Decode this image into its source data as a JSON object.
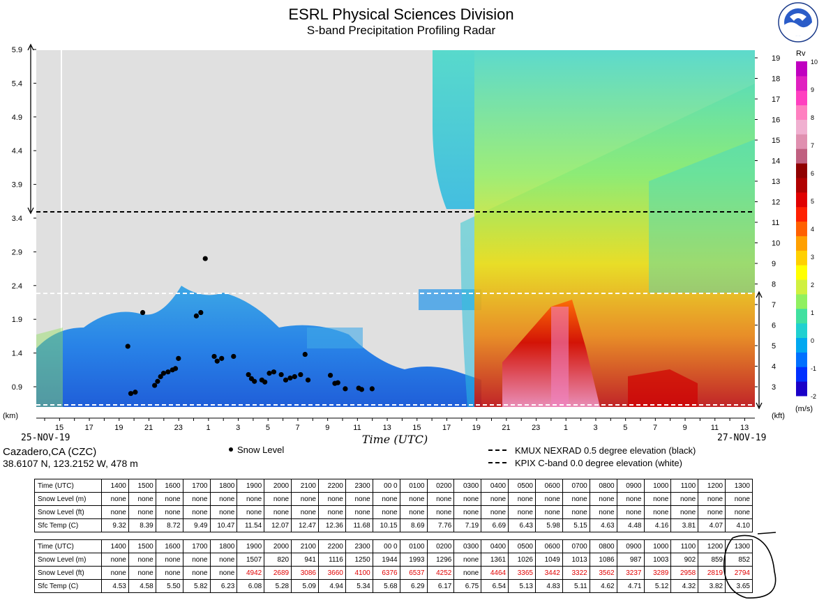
{
  "header": {
    "title": "ESRL Physical Sciences Division",
    "subtitle": "S-band Precipitation Profiling Radar"
  },
  "site": {
    "name": "Cazadero,CA (CZC)",
    "location": "38.6107 N, 123.2152 W, 478 m"
  },
  "legend": {
    "snow_level": "Snow Level",
    "kmux": "KMUX NEXRAD 0.5 degree elevation (black)",
    "kpix": "KPIX C-band 0.0 degree elevation (white)"
  },
  "colors": {
    "plot_background": "#e0e0e0",
    "red_value": "#e00000",
    "kmux_line": "#000000",
    "kpix_line": "#ffffff"
  },
  "chart_data": {
    "type": "heatmap",
    "variable": "Rv",
    "units": "(m/s)",
    "xlabel": "Time (UTC)",
    "left_axis_label": "(km)",
    "right_axis_label": "(kft)",
    "start_date": "25-NOV-19",
    "end_date": "27-NOV-19",
    "xticks": [
      "15",
      "17",
      "19",
      "21",
      "23",
      "1",
      "3",
      "5",
      "7",
      "9",
      "11",
      "13",
      "15",
      "17",
      "19",
      "21",
      "23",
      "1",
      "3",
      "5",
      "7",
      "9",
      "11",
      "13"
    ],
    "yticks_km": [
      "0.9",
      "1.4",
      "1.9",
      "2.4",
      "2.9",
      "3.4",
      "3.9",
      "4.4",
      "4.9",
      "5.4",
      "5.9"
    ],
    "yticks_kft": [
      "3",
      "4",
      "5",
      "6",
      "7",
      "8",
      "9",
      "10",
      "11",
      "12",
      "13",
      "14",
      "15",
      "16",
      "17",
      "18",
      "19"
    ],
    "colorbar_ticks": [
      "-2",
      "-1",
      "0",
      "1",
      "2",
      "3",
      "4",
      "5",
      "6",
      "7",
      "8",
      "9",
      "10"
    ],
    "colorbar_colors": [
      "#1a00c8",
      "#0030ff",
      "#0070ff",
      "#00a8f0",
      "#20d0d0",
      "#40e0a0",
      "#90f060",
      "#d0f040",
      "#ffff00",
      "#ffd000",
      "#ffa000",
      "#ff6000",
      "#ff2000",
      "#e00000",
      "#b00000",
      "#900000",
      "#c06080",
      "#e090b0",
      "#f0b0d0",
      "#ff80c0",
      "#ff40c0",
      "#e020c0",
      "#c000c0"
    ],
    "kmux_level_km": 3.5,
    "kpix_level_km": 2.3,
    "snow_level_points": [
      {
        "t": 19.6,
        "km": 1.5
      },
      {
        "t": 19.8,
        "km": 0.8
      },
      {
        "t": 20.1,
        "km": 0.82
      },
      {
        "t": 20.6,
        "km": 2.0
      },
      {
        "t": 21.4,
        "km": 0.92
      },
      {
        "t": 21.6,
        "km": 0.98
      },
      {
        "t": 21.8,
        "km": 1.05
      },
      {
        "t": 22.0,
        "km": 1.1
      },
      {
        "t": 22.3,
        "km": 1.12
      },
      {
        "t": 22.6,
        "km": 1.15
      },
      {
        "t": 22.8,
        "km": 1.17
      },
      {
        "t": 23.0,
        "km": 1.32
      },
      {
        "t": 24.2,
        "km": 1.95
      },
      {
        "t": 24.5,
        "km": 2.0
      },
      {
        "t": 24.8,
        "km": 2.8
      },
      {
        "t": 25.4,
        "km": 1.35
      },
      {
        "t": 25.6,
        "km": 1.28
      },
      {
        "t": 25.9,
        "km": 1.32
      },
      {
        "t": 26.7,
        "km": 1.35
      },
      {
        "t": 27.7,
        "km": 1.08
      },
      {
        "t": 27.9,
        "km": 1.02
      },
      {
        "t": 28.1,
        "km": 0.98
      },
      {
        "t": 28.6,
        "km": 1.0
      },
      {
        "t": 28.8,
        "km": 0.97
      },
      {
        "t": 29.1,
        "km": 1.1
      },
      {
        "t": 29.4,
        "km": 1.12
      },
      {
        "t": 29.9,
        "km": 1.08
      },
      {
        "t": 30.2,
        "km": 1.0
      },
      {
        "t": 30.5,
        "km": 1.03
      },
      {
        "t": 30.8,
        "km": 1.05
      },
      {
        "t": 31.2,
        "km": 1.08
      },
      {
        "t": 31.5,
        "km": 1.38
      },
      {
        "t": 31.7,
        "km": 1.0
      },
      {
        "t": 33.2,
        "km": 1.07
      },
      {
        "t": 33.5,
        "km": 0.95
      },
      {
        "t": 33.7,
        "km": 0.96
      },
      {
        "t": 34.2,
        "km": 0.87
      },
      {
        "t": 35.1,
        "km": 0.88
      },
      {
        "t": 35.3,
        "km": 0.86
      },
      {
        "t": 36.0,
        "km": 0.87
      }
    ]
  },
  "table1": {
    "headers": [
      "Time (UTC)",
      "1400",
      "1500",
      "1600",
      "1700",
      "1800",
      "1900",
      "2000",
      "2100",
      "2200",
      "2300",
      "00 0",
      "0100",
      "0200",
      "0300",
      "0400",
      "0500",
      "0600",
      "0700",
      "0800",
      "0900",
      "1000",
      "1100",
      "1200",
      "1300"
    ],
    "rows": [
      {
        "label": "Snow Level (m)",
        "cells": [
          "none",
          "none",
          "none",
          "none",
          "none",
          "none",
          "none",
          "none",
          "none",
          "none",
          "none",
          "none",
          "none",
          "none",
          "none",
          "none",
          "none",
          "none",
          "none",
          "none",
          "none",
          "none",
          "none",
          "none"
        ]
      },
      {
        "label": "Snow Level (ft)",
        "cells": [
          "none",
          "none",
          "none",
          "none",
          "none",
          "none",
          "none",
          "none",
          "none",
          "none",
          "none",
          "none",
          "none",
          "none",
          "none",
          "none",
          "none",
          "none",
          "none",
          "none",
          "none",
          "none",
          "none",
          "none"
        ]
      },
      {
        "label": "Sfc Temp (C)",
        "cells": [
          "9.32",
          "8.39",
          "8.72",
          "9.49",
          "10.47",
          "11.54",
          "12.07",
          "12.47",
          "12.36",
          "11.68",
          "10.15",
          "8.69",
          "7.76",
          "7.19",
          "6.69",
          "6.43",
          "5.98",
          "5.15",
          "4.63",
          "4.48",
          "4.16",
          "3.81",
          "4.07",
          "4.10"
        ]
      }
    ]
  },
  "table2": {
    "headers": [
      "Time (UTC)",
      "1400",
      "1500",
      "1600",
      "1700",
      "1800",
      "1900",
      "2000",
      "2100",
      "2200",
      "2300",
      "00 0",
      "0100",
      "0200",
      "0300",
      "0400",
      "0500",
      "0600",
      "0700",
      "0800",
      "0900",
      "1000",
      "1100",
      "1200",
      "1300"
    ],
    "rows": [
      {
        "label": "Snow Level (m)",
        "cells": [
          "none",
          "none",
          "none",
          "none",
          "none",
          "1507",
          "820",
          "941",
          "1116",
          "1250",
          "1944",
          "1993",
          "1296",
          "none",
          "1361",
          "1026",
          "1049",
          "1013",
          "1086",
          "987",
          "1003",
          "902",
          "859",
          "852"
        ]
      },
      {
        "label": "Snow Level (ft)",
        "red": true,
        "cells": [
          "none",
          "none",
          "none",
          "none",
          "none",
          "4942",
          "2689",
          "3086",
          "3660",
          "4100",
          "6376",
          "6537",
          "4252",
          "none",
          "4464",
          "3365",
          "3442",
          "3322",
          "3562",
          "3237",
          "3289",
          "2958",
          "2819",
          "2794"
        ]
      },
      {
        "label": "Sfc Temp (C)",
        "cells": [
          "4.53",
          "4.58",
          "5.50",
          "5.82",
          "6.23",
          "6.08",
          "5.28",
          "5.09",
          "4.94",
          "5.34",
          "5.68",
          "6.29",
          "6.17",
          "6.75",
          "6.54",
          "5.13",
          "4.83",
          "5.11",
          "4.62",
          "4.71",
          "5.12",
          "4.32",
          "3.82",
          "3.65"
        ]
      }
    ]
  }
}
